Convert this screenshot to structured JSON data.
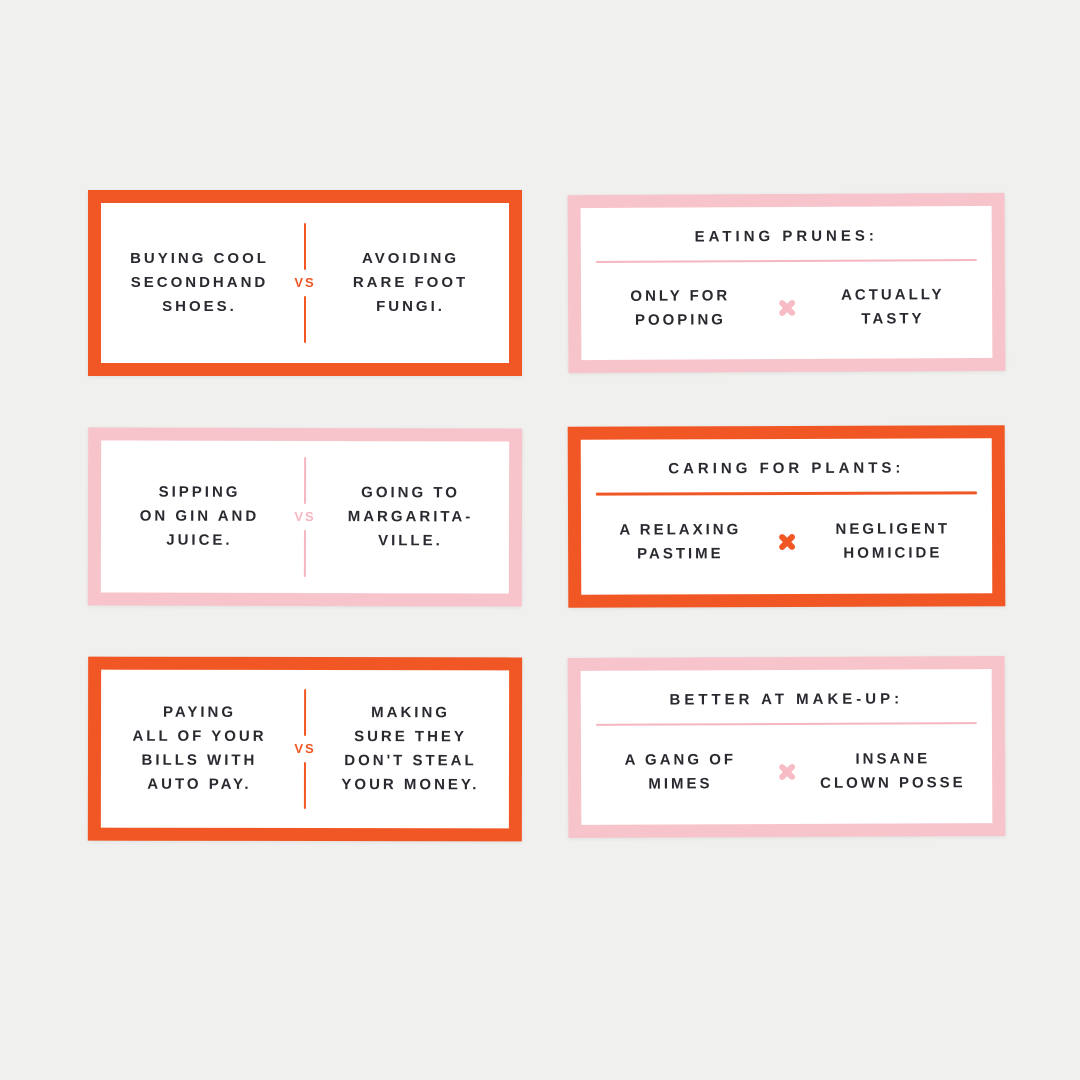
{
  "background_color": "#f0f0ef",
  "colors": {
    "orange": "#f15724",
    "pink": "#f8c4cb",
    "pink_accent": "#f6b6c0",
    "text": "#292930",
    "card_face": "#ffffff"
  },
  "cards": [
    {
      "style": "vs",
      "accent": "orange",
      "left_lines": [
        "BUYING COOL",
        "SECONDHAND",
        "SHOES."
      ],
      "vs_label": "VS",
      "right_lines": [
        "AVOIDING",
        "RARE FOOT",
        "FUNGI."
      ]
    },
    {
      "style": "topic",
      "accent": "pink",
      "title": "EATING PRUNES:",
      "left_lines": [
        "ONLY FOR",
        "POOPING"
      ],
      "x_icon": "x-mark",
      "right_lines": [
        "ACTUALLY",
        "TASTY"
      ]
    },
    {
      "style": "vs",
      "accent": "pink",
      "left_lines": [
        "SIPPING",
        "ON GIN AND",
        "JUICE."
      ],
      "vs_label": "VS",
      "right_lines": [
        "GOING TO",
        "MARGARITA-",
        "VILLE."
      ]
    },
    {
      "style": "topic",
      "accent": "orange",
      "title": "CARING FOR PLANTS:",
      "left_lines": [
        "A RELAXING",
        "PASTIME"
      ],
      "x_icon": "x-mark",
      "right_lines": [
        "NEGLIGENT",
        "HOMICIDE"
      ]
    },
    {
      "style": "vs",
      "accent": "orange",
      "left_lines": [
        "PAYING",
        "ALL OF YOUR",
        "BILLS WITH",
        "AUTO PAY."
      ],
      "vs_label": "VS",
      "right_lines": [
        "MAKING",
        "SURE THEY",
        "DON'T STEAL",
        "YOUR MONEY."
      ]
    },
    {
      "style": "topic",
      "accent": "pink",
      "title": "BETTER AT MAKE-UP:",
      "left_lines": [
        "A GANG OF",
        "MIMES"
      ],
      "x_icon": "x-mark",
      "right_lines": [
        "INSANE",
        "CLOWN POSSE"
      ]
    }
  ]
}
